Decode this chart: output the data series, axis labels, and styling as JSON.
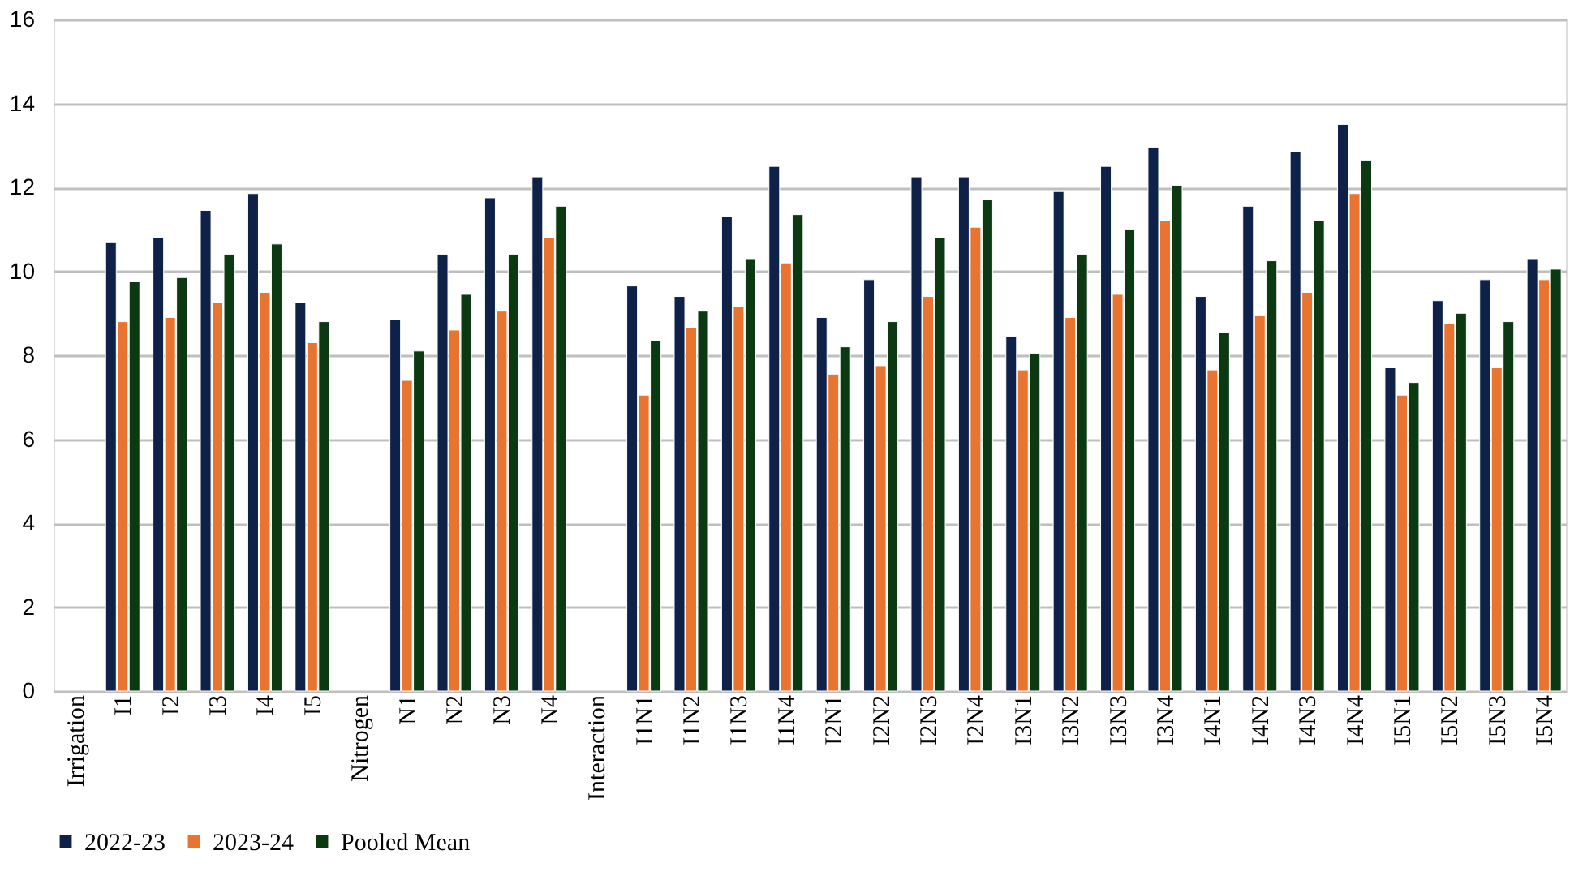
{
  "chart_data": {
    "type": "bar",
    "categories": [
      "Irrigation",
      "I1",
      "I2",
      "I3",
      "I4",
      "I5",
      "Nitrogen",
      "N1",
      "N2",
      "N3",
      "N4",
      "Interaction",
      "I1N1",
      "I1N2",
      "I1N3",
      "I1N4",
      "I2N1",
      "I2N2",
      "I2N3",
      "I2N4",
      "I3N1",
      "I3N2",
      "I3N3",
      "I3N4",
      "I4N1",
      "I4N2",
      "I4N3",
      "I4N4",
      "I5N1",
      "I5N2",
      "I5N3",
      "I5N4"
    ],
    "series": [
      {
        "name": "2022-23",
        "color": "#0e2148",
        "values": [
          null,
          10.7,
          10.8,
          11.45,
          11.85,
          9.25,
          null,
          8.85,
          10.4,
          11.75,
          12.25,
          null,
          9.65,
          9.4,
          11.3,
          12.5,
          8.9,
          9.8,
          12.25,
          12.25,
          8.45,
          11.9,
          12.5,
          12.95,
          9.4,
          11.55,
          12.85,
          13.5,
          7.7,
          9.3,
          9.8,
          10.3
        ]
      },
      {
        "name": "2023-24",
        "color": "#e8742f",
        "values": [
          null,
          8.8,
          8.9,
          9.25,
          9.5,
          8.3,
          null,
          7.4,
          8.6,
          9.05,
          10.8,
          null,
          7.05,
          8.65,
          9.15,
          10.2,
          7.55,
          7.75,
          9.4,
          11.05,
          7.65,
          8.9,
          9.45,
          11.2,
          7.65,
          8.95,
          9.5,
          11.85,
          7.05,
          8.75,
          7.7,
          9.8
        ]
      },
      {
        "name": "Pooled Mean",
        "color": "#0b3a12",
        "values": [
          null,
          9.75,
          9.85,
          10.4,
          10.65,
          8.8,
          null,
          8.1,
          9.45,
          10.4,
          11.55,
          null,
          8.35,
          9.05,
          10.3,
          11.35,
          8.2,
          8.8,
          10.8,
          11.7,
          8.05,
          10.4,
          11.0,
          12.05,
          8.55,
          10.25,
          11.2,
          12.65,
          7.35,
          9.0,
          8.8,
          10.05
        ]
      }
    ],
    "ylim": [
      0,
      16
    ],
    "yticks": [
      0,
      2,
      4,
      6,
      8,
      10,
      12,
      14,
      16
    ],
    "grid": "y",
    "legend": "bottom"
  }
}
